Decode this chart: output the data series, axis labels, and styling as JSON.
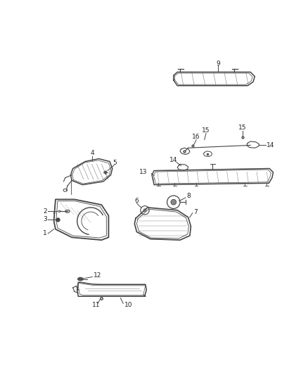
{
  "bg_color": "#ffffff",
  "line_color": "#444444",
  "label_color": "#222222",
  "figsize": [
    4.38,
    5.33
  ],
  "dpi": 100,
  "label_fs": 6.5
}
